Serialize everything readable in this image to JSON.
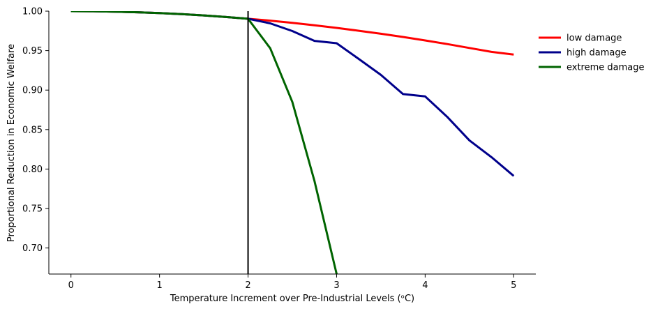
{
  "chart_data": {
    "type": "line",
    "title": "",
    "xlabel": "Temperature Increment over Pre-Industrial Levels (ᵒC)",
    "ylabel": "Proportional Reduction in Economic Welfare",
    "xlim": [
      -0.25,
      5.25
    ],
    "ylim": [
      0.667,
      1.0
    ],
    "xticks": [
      0,
      1,
      2,
      3,
      4,
      5
    ],
    "yticks": [
      "1.00",
      "0.95",
      "0.90",
      "0.85",
      "0.80",
      "0.75",
      "0.70"
    ],
    "grid": false,
    "legend_position": "right",
    "vline_x": 2,
    "x": [
      0,
      0.25,
      0.5,
      0.75,
      1,
      1.25,
      1.5,
      1.75,
      2,
      2.25,
      2.5,
      2.75,
      3,
      3.25,
      3.5,
      3.75,
      4,
      4.25,
      4.5,
      4.75,
      5
    ],
    "series": [
      {
        "name": "low damage",
        "color": "#ff0000",
        "values": [
          1.0,
          0.9999,
          0.9994,
          0.9986,
          0.9976,
          0.9962,
          0.9946,
          0.9926,
          0.9904,
          0.988,
          0.9852,
          0.9822,
          0.9788,
          0.9752,
          0.9714,
          0.9673,
          0.9629,
          0.9583,
          0.9534,
          0.9484,
          0.9451
        ]
      },
      {
        "name": "high damage",
        "color": "#00008b",
        "values": [
          1.0,
          0.9999,
          0.9994,
          0.9986,
          0.9976,
          0.9962,
          0.9946,
          0.9926,
          0.9904,
          0.9845,
          0.9748,
          0.9624,
          0.9594,
          0.9395,
          0.9193,
          0.895,
          0.892,
          0.866,
          0.8363,
          0.815,
          0.7913
        ]
      },
      {
        "name": "extreme damage",
        "color": "#006400",
        "values": [
          1.0,
          0.9999,
          0.9994,
          0.9986,
          0.9976,
          0.9962,
          0.9946,
          0.9926,
          0.9904,
          0.953,
          0.885,
          0.785,
          0.667,
          null,
          null,
          null,
          null,
          null,
          null,
          null,
          null
        ]
      }
    ]
  }
}
